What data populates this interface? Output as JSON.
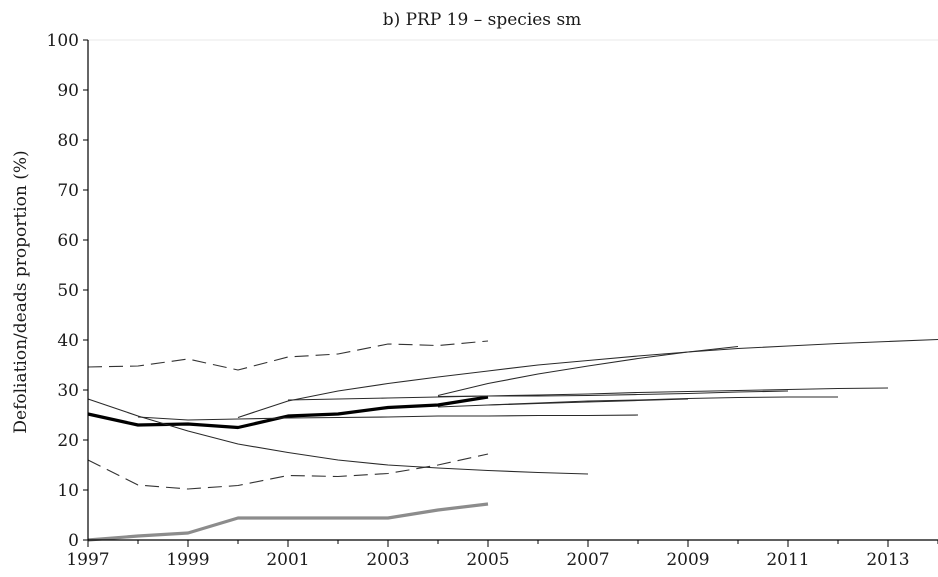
{
  "chart_data": {
    "type": "line",
    "title": "b) PRP 19 – species sm",
    "xlabel": "",
    "ylabel": "Defoliation/deads proportion (%)",
    "xlim": [
      1997,
      2014
    ],
    "ylim": [
      0,
      100
    ],
    "xticks": [
      "1997",
      "1999",
      "2001",
      "2003",
      "2005",
      "2007",
      "2009",
      "2011",
      "2013"
    ],
    "yticks": [
      "0",
      "10",
      "20",
      "30",
      "40",
      "50",
      "60",
      "70",
      "80",
      "90",
      "100"
    ],
    "grid": false,
    "series": [
      {
        "style": "bold-black",
        "color": "#000000",
        "x": [
          1997,
          1998,
          1999,
          2000,
          2001,
          2002,
          2003,
          2004,
          2005
        ],
        "y": [
          25.2,
          23.0,
          23.2,
          22.5,
          24.8,
          25.2,
          26.5,
          27.0,
          28.6
        ]
      },
      {
        "style": "bold-gray",
        "color": "#8c8c8c",
        "x": [
          1997,
          1998,
          1999,
          2000,
          2001,
          2002,
          2003,
          2004,
          2005
        ],
        "y": [
          0.0,
          0.8,
          1.4,
          4.4,
          4.4,
          4.4,
          4.4,
          6.0,
          7.2
        ]
      },
      {
        "style": "dashed",
        "color": "#333333",
        "x": [
          1997,
          1998,
          1999,
          2000,
          2001,
          2002,
          2003,
          2004,
          2005
        ],
        "y": [
          34.6,
          34.8,
          36.2,
          34.0,
          36.6,
          37.2,
          39.2,
          38.9,
          39.8
        ]
      },
      {
        "style": "dashed",
        "color": "#333333",
        "x": [
          1997,
          1998,
          1999,
          2000,
          2001,
          2002,
          2003,
          2004,
          2005
        ],
        "y": [
          16.0,
          11.0,
          10.2,
          10.9,
          12.9,
          12.7,
          13.3,
          15.0,
          17.2
        ]
      },
      {
        "style": "thin",
        "color": "#2a2a2a",
        "x": [
          1997,
          1998,
          1999,
          2000,
          2001,
          2002,
          2003,
          2004,
          2005,
          2006,
          2007
        ],
        "y": [
          28.2,
          24.8,
          21.8,
          19.2,
          17.5,
          16.0,
          15.0,
          14.4,
          13.9,
          13.5,
          13.2
        ]
      },
      {
        "style": "thin",
        "color": "#2a2a2a",
        "x": [
          1998,
          1999,
          2000,
          2001,
          2002,
          2003,
          2004,
          2005,
          2006,
          2007,
          2008
        ],
        "y": [
          24.6,
          24.0,
          24.2,
          24.4,
          24.5,
          24.6,
          24.8,
          24.8,
          24.9,
          24.9,
          25.0
        ]
      },
      {
        "style": "thin",
        "color": "#2a2a2a",
        "x": [
          2000,
          2001,
          2002,
          2003,
          2004,
          2005,
          2006,
          2007,
          2008,
          2009,
          2010,
          2011,
          2012,
          2013,
          2014
        ],
        "y": [
          24.5,
          27.8,
          29.8,
          31.3,
          32.6,
          33.8,
          35.0,
          35.9,
          36.8,
          37.6,
          38.3,
          38.8,
          39.3,
          39.7,
          40.1
        ]
      },
      {
        "style": "thin",
        "color": "#2a2a2a",
        "x": [
          2001,
          2002,
          2003,
          2004,
          2005,
          2006,
          2007,
          2008,
          2009,
          2010,
          2011,
          2012,
          2013
        ],
        "y": [
          28.0,
          28.2,
          28.4,
          28.6,
          28.8,
          29.0,
          29.2,
          29.5,
          29.7,
          29.9,
          30.1,
          30.3,
          30.4
        ]
      },
      {
        "style": "thin",
        "color": "#2a2a2a",
        "x": [
          2004,
          2005,
          2006,
          2007,
          2008,
          2009,
          2010
        ],
        "y": [
          28.9,
          31.3,
          33.2,
          34.8,
          36.3,
          37.6,
          38.7
        ]
      },
      {
        "style": "thin",
        "color": "#2a2a2a",
        "x": [
          2004,
          2005,
          2006,
          2007,
          2008,
          2009,
          2010,
          2011,
          2012
        ],
        "y": [
          26.6,
          27.0,
          27.4,
          27.8,
          28.0,
          28.3,
          28.5,
          28.6,
          28.6
        ]
      },
      {
        "style": "thin",
        "color": "#2a2a2a",
        "x": [
          2004,
          2005,
          2006,
          2007,
          2008,
          2009,
          2010,
          2011
        ],
        "y": [
          28.7,
          28.8,
          28.8,
          28.9,
          29.1,
          29.3,
          29.6,
          29.8
        ]
      },
      {
        "style": "thin",
        "color": "#2a2a2a",
        "x": [
          2005,
          2006,
          2007,
          2008,
          2009
        ],
        "y": [
          27.0,
          27.3,
          27.6,
          27.9,
          28.2
        ]
      }
    ]
  }
}
